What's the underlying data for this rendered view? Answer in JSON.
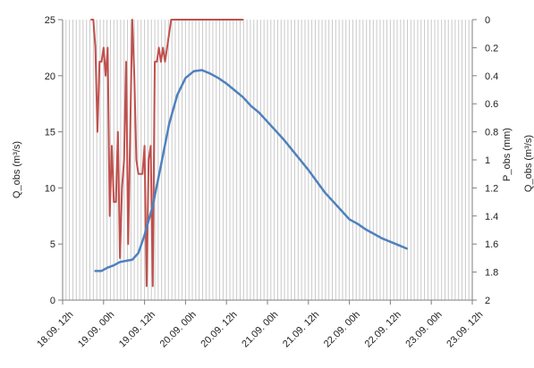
{
  "chart_data": {
    "type": "line",
    "title": "",
    "xlabel": "",
    "ylabel": "Q_obs (m³/s)",
    "ylabel_right_inner": "P_obs (mm)",
    "ylabel_right_outer": "Q_obs (m³/s)",
    "x_axis": {
      "range": [
        "18.09. 12h",
        "23.09. 12h"
      ],
      "ticks": [
        "18.09. 12h",
        "19.09. 00h",
        "19.09. 12h",
        "20.09. 00h",
        "20.09. 12h",
        "21.09. 00h",
        "21.09. 12h",
        "22.09. 00h",
        "22.09. 12h",
        "23.09. 00h",
        "23.09. 12h"
      ],
      "unit": "hours since 18.09. 12h"
    },
    "y_left": {
      "range": [
        0,
        25
      ],
      "ticks": [
        "0",
        "5",
        "10",
        "15",
        "20",
        "25"
      ]
    },
    "y_right": {
      "range": [
        2,
        0
      ],
      "inverted": true,
      "ticks": [
        "0",
        "0.2",
        "0.4",
        "0.6",
        "0.8",
        "1",
        "1.2",
        "1.4",
        "1.6",
        "1.8",
        "2"
      ]
    },
    "grid": {
      "vertical": true,
      "horizontal": false
    },
    "legend": "none",
    "series": [
      {
        "axis": "left",
        "color": "#4f81bd",
        "points": [
          [
            9.6,
            2.6
          ],
          [
            11.4,
            2.6
          ],
          [
            13.2,
            2.9
          ],
          [
            15.0,
            3.1
          ],
          [
            16.8,
            3.4
          ],
          [
            18.6,
            3.5
          ],
          [
            20.4,
            3.6
          ],
          [
            22.2,
            4.2
          ],
          [
            24.0,
            5.8
          ],
          [
            26.4,
            8.4
          ],
          [
            28.8,
            12.0
          ],
          [
            31.2,
            15.7
          ],
          [
            33.6,
            18.3
          ],
          [
            36.0,
            19.8
          ],
          [
            38.4,
            20.4
          ],
          [
            40.8,
            20.5
          ],
          [
            43.2,
            20.2
          ],
          [
            45.6,
            19.8
          ],
          [
            48.0,
            19.3
          ],
          [
            50.4,
            18.7
          ],
          [
            52.8,
            18.1
          ],
          [
            55.2,
            17.3
          ],
          [
            57.6,
            16.7
          ],
          [
            60.0,
            15.9
          ],
          [
            62.4,
            15.1
          ],
          [
            64.8,
            14.3
          ],
          [
            67.2,
            13.4
          ],
          [
            69.6,
            12.5
          ],
          [
            72.0,
            11.6
          ],
          [
            74.4,
            10.6
          ],
          [
            76.8,
            9.6
          ],
          [
            79.2,
            8.8
          ],
          [
            81.6,
            8.0
          ],
          [
            84.0,
            7.2
          ],
          [
            86.4,
            6.8
          ],
          [
            88.8,
            6.3
          ],
          [
            91.2,
            5.9
          ],
          [
            93.6,
            5.5
          ],
          [
            96.0,
            5.2
          ],
          [
            98.4,
            4.9
          ],
          [
            100.8,
            4.6
          ]
        ]
      },
      {
        "axis": "right",
        "color": "#c0504d",
        "points": [
          [
            8.4,
            0.0
          ],
          [
            9.0,
            0.0
          ],
          [
            9.6,
            0.2
          ],
          [
            10.2,
            0.8
          ],
          [
            10.8,
            0.3
          ],
          [
            11.4,
            0.3
          ],
          [
            12.0,
            0.2
          ],
          [
            12.6,
            0.4
          ],
          [
            13.2,
            0.2
          ],
          [
            13.8,
            1.4
          ],
          [
            14.4,
            0.9
          ],
          [
            15.0,
            1.3
          ],
          [
            15.6,
            1.3
          ],
          [
            16.2,
            0.8
          ],
          [
            16.8,
            1.7
          ],
          [
            17.4,
            1.2
          ],
          [
            18.0,
            1.0
          ],
          [
            18.6,
            0.3
          ],
          [
            19.2,
            1.6
          ],
          [
            19.8,
            0.8
          ],
          [
            20.4,
            0.0
          ],
          [
            21.0,
            0.4
          ],
          [
            21.6,
            1.0
          ],
          [
            22.2,
            1.1
          ],
          [
            22.8,
            1.1
          ],
          [
            23.4,
            1.1
          ],
          [
            24.0,
            0.9
          ],
          [
            24.6,
            1.9
          ],
          [
            25.2,
            1.0
          ],
          [
            25.8,
            0.9
          ],
          [
            26.4,
            1.9
          ],
          [
            27.0,
            0.3
          ],
          [
            27.6,
            0.3
          ],
          [
            28.2,
            0.2
          ],
          [
            28.8,
            0.3
          ],
          [
            29.4,
            0.2
          ],
          [
            30.0,
            0.3
          ],
          [
            30.6,
            0.2
          ],
          [
            31.2,
            0.1
          ],
          [
            31.8,
            0.0
          ],
          [
            34.0,
            0.0
          ],
          [
            40.0,
            0.0
          ],
          [
            46.0,
            0.0
          ],
          [
            52.8,
            0.0
          ]
        ]
      }
    ]
  }
}
